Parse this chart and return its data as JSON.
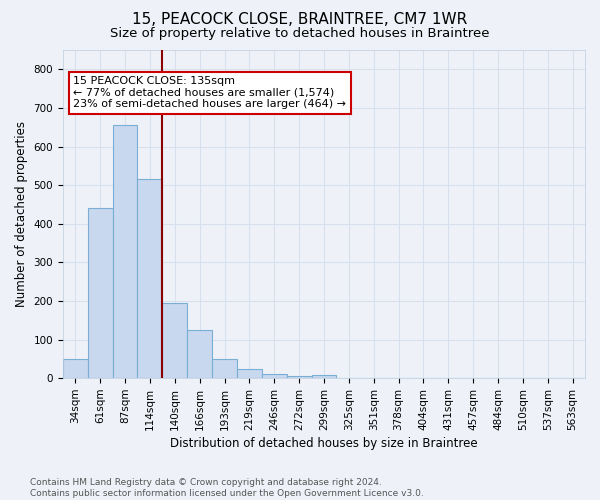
{
  "title": "15, PEACOCK CLOSE, BRAINTREE, CM7 1WR",
  "subtitle": "Size of property relative to detached houses in Braintree",
  "xlabel": "Distribution of detached houses by size in Braintree",
  "ylabel": "Number of detached properties",
  "bar_labels": [
    "34sqm",
    "61sqm",
    "87sqm",
    "114sqm",
    "140sqm",
    "166sqm",
    "193sqm",
    "219sqm",
    "246sqm",
    "272sqm",
    "299sqm",
    "325sqm",
    "351sqm",
    "378sqm",
    "404sqm",
    "431sqm",
    "457sqm",
    "484sqm",
    "510sqm",
    "537sqm",
    "563sqm"
  ],
  "bar_values": [
    50,
    440,
    655,
    515,
    195,
    125,
    50,
    25,
    10,
    5,
    8,
    0,
    0,
    0,
    0,
    0,
    0,
    0,
    0,
    0,
    0
  ],
  "bar_color": "#c8d8ee",
  "bar_edgecolor": "#7aaed4",
  "vline_x": 3.5,
  "vline_color": "#8b0000",
  "annotation_line1": "15 PEACOCK CLOSE: 135sqm",
  "annotation_line2": "← 77% of detached houses are smaller (1,574)",
  "annotation_line3": "23% of semi-detached houses are larger (464) →",
  "annotation_box_color": "white",
  "annotation_box_edgecolor": "#cc0000",
  "ylim": [
    0,
    850
  ],
  "yticks": [
    0,
    100,
    200,
    300,
    400,
    500,
    600,
    700,
    800
  ],
  "footer": "Contains HM Land Registry data © Crown copyright and database right 2024.\nContains public sector information licensed under the Open Government Licence v3.0.",
  "background_color": "#eef2f8",
  "grid_color": "#d8e0ed",
  "title_fontsize": 11,
  "subtitle_fontsize": 9.5,
  "label_fontsize": 8.5,
  "tick_fontsize": 7.5,
  "annotation_fontsize": 8,
  "footer_fontsize": 6.5
}
